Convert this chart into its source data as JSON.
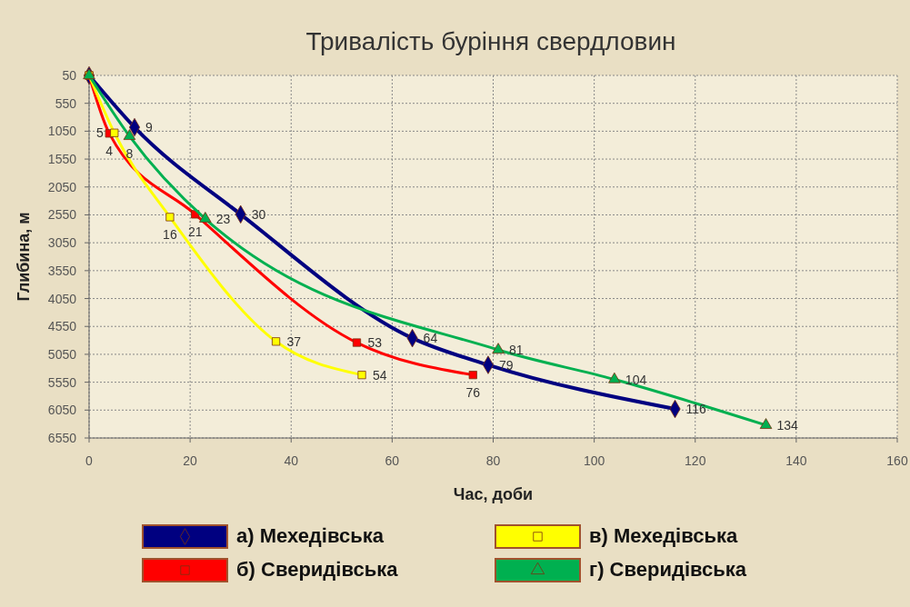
{
  "chart_data": {
    "type": "line",
    "title": "Тривалість буріння свердловин",
    "xlabel": "Час, доби",
    "ylabel": "Глибина, м",
    "xlim": [
      0,
      160
    ],
    "xticks": [
      0,
      20,
      40,
      60,
      80,
      100,
      120,
      140,
      160
    ],
    "ylim": [
      6550,
      50
    ],
    "yticks": [
      50,
      550,
      1050,
      1550,
      2050,
      2550,
      3050,
      3550,
      4050,
      4550,
      5050,
      5550,
      6050,
      6550
    ],
    "grid": true,
    "legend": "bottom",
    "series": [
      {
        "name": "а) Мехедівська",
        "color": "#000080",
        "marker": "diamond",
        "x": [
          0,
          9,
          30,
          64,
          79,
          116
        ],
        "values": [
          50,
          980,
          2540,
          4760,
          5240,
          6030
        ]
      },
      {
        "name": "б) Сверидівська",
        "color": "#ff0000",
        "marker": "square",
        "x": [
          0,
          4,
          21,
          53,
          76
        ],
        "values": [
          50,
          1090,
          2540,
          4840,
          5420
        ]
      },
      {
        "name": "в) Мехедівська",
        "color": "#ffff00",
        "marker": "square",
        "x": [
          0,
          5,
          16,
          37,
          54
        ],
        "values": [
          50,
          1080,
          2590,
          4820,
          5420
        ]
      },
      {
        "name": "г) Сверидівська",
        "color": "#00b050",
        "marker": "triangle",
        "x": [
          0,
          8,
          23,
          81,
          104,
          134
        ],
        "values": [
          50,
          1140,
          2620,
          4970,
          5500,
          6320
        ]
      }
    ],
    "annotations": [
      {
        "text": "9",
        "x": 9,
        "y": 980
      },
      {
        "text": "30",
        "x": 30,
        "y": 2540
      },
      {
        "text": "64",
        "x": 64,
        "y": 4760
      },
      {
        "text": "79",
        "x": 79,
        "y": 5240
      },
      {
        "text": "116",
        "x": 116,
        "y": 6030
      },
      {
        "text": "4",
        "x": 4,
        "y": 1090
      },
      {
        "text": "21",
        "x": 21,
        "y": 2540
      },
      {
        "text": "53",
        "x": 53,
        "y": 4840
      },
      {
        "text": "76",
        "x": 76,
        "y": 5420
      },
      {
        "text": "5",
        "x": 5,
        "y": 1080
      },
      {
        "text": "16",
        "x": 16,
        "y": 2590
      },
      {
        "text": "37",
        "x": 37,
        "y": 4820
      },
      {
        "text": "54",
        "x": 54,
        "y": 5420
      },
      {
        "text": "8",
        "x": 8,
        "y": 1140
      },
      {
        "text": "23",
        "x": 23,
        "y": 2620
      },
      {
        "text": "81",
        "x": 81,
        "y": 4970
      },
      {
        "text": "104",
        "x": 104,
        "y": 5500
      },
      {
        "text": "134",
        "x": 134,
        "y": 6320
      }
    ]
  }
}
